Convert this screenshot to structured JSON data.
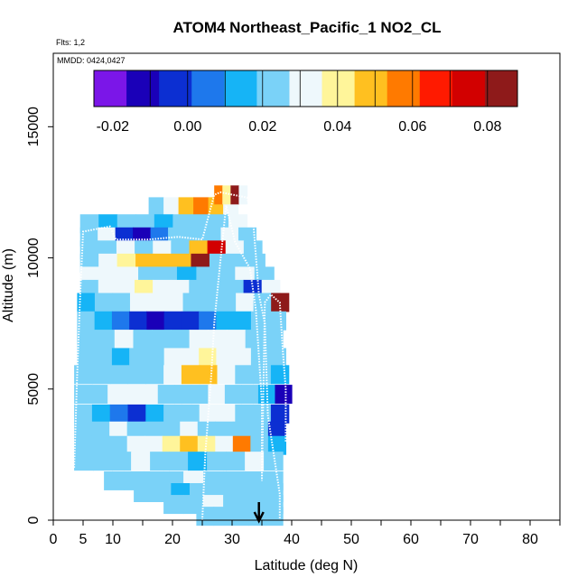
{
  "title": "ATOM4 Northeast_Pacific_1 NO2_CL",
  "flights_label": "Flts: 1,2",
  "dates_label": "MMDD: 0424,0427",
  "chart_data": {
    "type": "heatmap",
    "title": "ATOM4 Northeast_Pacific_1 NO2_CL",
    "xlabel": "Latitude (deg N)",
    "ylabel": "Altitude (m)",
    "xlim": [
      0,
      85
    ],
    "ylim": [
      0,
      17800
    ],
    "x_ticks": [
      0,
      5,
      10,
      20,
      30,
      40,
      50,
      60,
      70,
      80
    ],
    "x_minor_ticks": [
      15,
      25,
      35,
      45,
      55,
      65,
      75,
      85
    ],
    "y_ticks": [
      0,
      5000,
      10000,
      15000
    ],
    "colorbar": {
      "range": [
        -0.025,
        0.088
      ],
      "ticks": [
        "-0.02",
        "0.00",
        "0.02",
        "0.04",
        "0.06",
        "0.08"
      ],
      "tick_values": [
        -0.02,
        0.0,
        0.02,
        0.04,
        0.06,
        0.08
      ],
      "boundaries": [
        -0.01,
        0.0,
        0.01,
        0.02,
        0.03,
        0.04,
        0.05,
        0.06,
        0.07,
        0.08
      ],
      "colors": [
        "#7b16e8",
        "#1a00b8",
        "#0c2fd2",
        "#1e78ec",
        "#16b4f6",
        "#7ad2f8",
        "#eef8fc",
        "#fff59a",
        "#ffc020",
        "#ff7a00",
        "#ff1a00",
        "#d20000",
        "#8e1a1a"
      ]
    },
    "rows": [
      {
        "alt": 11950,
        "lat_start": 16,
        "lat_end": 31,
        "values": [
          0.02,
          0.03,
          0.05,
          0.055,
          0.045,
          0.035
        ]
      },
      {
        "alt": 12400,
        "lat_start": 27,
        "lat_end": 32.5,
        "values": [
          0.055,
          0.04,
          0.085,
          0.03
        ]
      },
      {
        "alt": 11300,
        "lat_start": 4.5,
        "lat_end": 32.5,
        "values": [
          0.02,
          0.015,
          0.025,
          0.02,
          0.015,
          0.02,
          0.025,
          0.02,
          0.03
        ]
      },
      {
        "alt": 10800,
        "lat_start": 4.5,
        "lat_end": 34,
        "values": [
          0.02,
          0.03,
          -0.005,
          -0.01,
          0.005,
          0.025,
          0.02,
          0.025,
          0.03,
          0.02
        ]
      },
      {
        "alt": 10300,
        "lat_start": 4.5,
        "lat_end": 35,
        "values": [
          0.02,
          0.025,
          0.03,
          0.02,
          0.035,
          0.02,
          0.045,
          0.075,
          0.035,
          0.025
        ]
      },
      {
        "alt": 9800,
        "lat_start": 4.5,
        "lat_end": 35.5,
        "values": [
          0.025,
          0.03,
          0.04,
          0.045,
          0.05,
          0.05,
          0.08,
          0.02,
          0.025,
          0.02
        ]
      },
      {
        "alt": 9300,
        "lat_start": 4.5,
        "lat_end": 37,
        "values": [
          0.03,
          0.035,
          0.03,
          0.025,
          0.02,
          0.015,
          0.02,
          0.025,
          0.03,
          0.02
        ]
      },
      {
        "alt": 8800,
        "lat_start": 4.5,
        "lat_end": 38,
        "values": [
          0.025,
          0.03,
          0.035,
          0.04,
          0.035,
          0.03,
          0.025,
          0.02,
          0.025,
          -0.005,
          0.03
        ]
      },
      {
        "alt": 8300,
        "lat_start": 4,
        "lat_end": 39.5,
        "values": [
          0.015,
          0.02,
          0.025,
          0.03,
          0.035,
          0.03,
          0.025,
          0.02,
          0.025,
          0.03,
          0.02,
          0.08
        ]
      },
      {
        "alt": 7600,
        "lat_start": 4,
        "lat_end": 39,
        "values": [
          0.02,
          0.01,
          0.005,
          -0.005,
          -0.01,
          -0.005,
          0.0,
          0.005,
          0.01,
          0.015,
          0.02,
          0.025
        ]
      },
      {
        "alt": 6900,
        "lat_start": 4,
        "lat_end": 38.5,
        "values": [
          0.02,
          0.025,
          0.03,
          0.025,
          0.02,
          0.025,
          0.03,
          0.035,
          0.03,
          0.025,
          0.02
        ]
      },
      {
        "alt": 6200,
        "lat_start": 4,
        "lat_end": 39,
        "values": [
          0.025,
          0.02,
          0.015,
          0.02,
          0.025,
          0.03,
          0.035,
          0.04,
          0.035,
          0.03,
          0.025,
          0.02
        ]
      },
      {
        "alt": 5550,
        "lat_start": 3.5,
        "lat_end": 39.5,
        "values": [
          0.02,
          0.025,
          0.02,
          0.025,
          0.02,
          0.03,
          0.045,
          0.05,
          0.03,
          0.025,
          0.02,
          0.015
        ]
      },
      {
        "alt": 4800,
        "lat_start": 3.5,
        "lat_end": 40,
        "values": [
          0.02,
          0.025,
          0.03,
          0.035,
          0.03,
          0.025,
          0.02,
          0.025,
          0.03,
          0.025,
          0.02,
          0.01,
          -0.01
        ]
      },
      {
        "alt": 4050,
        "lat_start": 3.5,
        "lat_end": 39.5,
        "values": [
          0.02,
          0.01,
          0.005,
          0.0,
          0.01,
          0.02,
          0.025,
          0.03,
          0.035,
          0.025,
          0.02,
          -0.005
        ]
      },
      {
        "alt": 3400,
        "lat_start": 3.5,
        "lat_end": 39,
        "values": [
          0.02,
          0.025,
          0.03,
          0.025,
          0.02,
          0.025,
          0.03,
          0.025,
          0.02,
          0.025,
          0.02,
          -0.005
        ]
      },
      {
        "alt": 2850,
        "lat_start": 3.5,
        "lat_end": 39,
        "values": [
          0.025,
          0.02,
          0.025,
          0.03,
          0.035,
          0.04,
          0.045,
          0.04,
          0.035,
          0.06,
          0.02,
          0.01
        ]
      },
      {
        "alt": 2250,
        "lat_start": 3.5,
        "lat_end": 38.5,
        "values": [
          0.025,
          0.02,
          0.025,
          0.03,
          0.025,
          0.02,
          0.015,
          0.02,
          0.025,
          0.03,
          0.02
        ]
      },
      {
        "alt": 1500,
        "lat_start": 8.5,
        "lat_end": 38.5,
        "values": [
          0.02,
          0.025,
          0.02,
          0.025,
          0.03,
          0.025,
          0.02,
          0.025,
          0.02
        ]
      },
      {
        "alt": 1050,
        "lat_start": 13.5,
        "lat_end": 38.5,
        "values": [
          0.025,
          0.02,
          0.015,
          0.02,
          0.025,
          0.02,
          0.025,
          0.02
        ]
      },
      {
        "alt": 600,
        "lat_start": 18.5,
        "lat_end": 38.5,
        "values": [
          0.02,
          0.025,
          0.03,
          0.025,
          0.02,
          0.025
        ]
      },
      {
        "alt": 150,
        "lat_start": 24,
        "lat_end": 38.5,
        "values": [
          0.02,
          0.025,
          0.02,
          0.025,
          0.02
        ]
      }
    ],
    "flight_tracks": [
      [
        [
          3.5,
          2000
        ],
        [
          4,
          5500
        ],
        [
          4.5,
          8500
        ],
        [
          5,
          11000
        ],
        [
          9.5,
          11200
        ],
        [
          10.5,
          10700
        ],
        [
          16,
          10700
        ],
        [
          21,
          10800
        ],
        [
          25,
          10700
        ],
        [
          27,
          12400
        ],
        [
          28,
          12500
        ],
        [
          32.5,
          12300
        ],
        [
          33.5,
          11500
        ],
        [
          34.5,
          8600
        ],
        [
          35.5,
          7500
        ],
        [
          36,
          4000
        ],
        [
          37,
          2500
        ],
        [
          38,
          1000
        ],
        [
          38,
          0
        ]
      ],
      [
        [
          25,
          0
        ],
        [
          25.5,
          2500
        ],
        [
          26.5,
          5500
        ],
        [
          27,
          7500
        ],
        [
          28,
          9800
        ],
        [
          29,
          12000
        ],
        [
          30.5,
          10600
        ],
        [
          33,
          9600
        ],
        [
          34,
          8000
        ],
        [
          35,
          4500
        ],
        [
          35,
          2500
        ],
        [
          35,
          1500
        ],
        [
          35.5,
          8300
        ],
        [
          36.5,
          8600
        ],
        [
          38,
          8300
        ],
        [
          38.5,
          6500
        ],
        [
          39,
          5000
        ],
        [
          39,
          3000
        ]
      ]
    ],
    "arrow_latitude": 34.5
  }
}
